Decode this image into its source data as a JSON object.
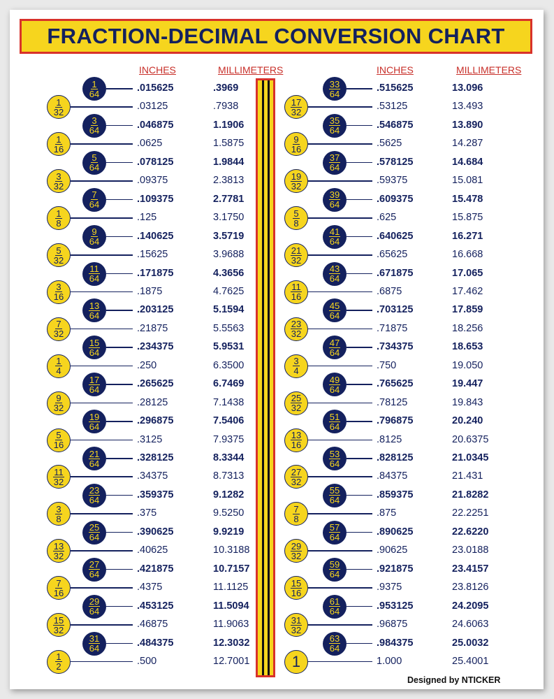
{
  "title": "FRACTION-DECIMAL CONVERSION CHART",
  "columns": {
    "inches": "INCHES",
    "millimeters": "MILLIMETERS"
  },
  "credit": "Designed by NTICKER",
  "colors": {
    "navy": "#14215e",
    "yellow": "#f6d51e",
    "red": "#d8322a"
  },
  "left": [
    {
      "num": "1",
      "den": "64",
      "inch": ".015625",
      "mm": ".3969",
      "bold": true
    },
    {
      "num": "1",
      "den": "32",
      "inch": ".03125",
      "mm": ".7938",
      "bold": false
    },
    {
      "num": "3",
      "den": "64",
      "inch": ".046875",
      "mm": "1.1906",
      "bold": true
    },
    {
      "num": "1",
      "den": "16",
      "inch": ".0625",
      "mm": "1.5875",
      "bold": false
    },
    {
      "num": "5",
      "den": "64",
      "inch": ".078125",
      "mm": "1.9844",
      "bold": true
    },
    {
      "num": "3",
      "den": "32",
      "inch": ".09375",
      "mm": "2.3813",
      "bold": false
    },
    {
      "num": "7",
      "den": "64",
      "inch": ".109375",
      "mm": "2.7781",
      "bold": true
    },
    {
      "num": "1",
      "den": "8",
      "inch": ".125",
      "mm": "3.1750",
      "bold": false
    },
    {
      "num": "9",
      "den": "64",
      "inch": ".140625",
      "mm": "3.5719",
      "bold": true
    },
    {
      "num": "5",
      "den": "32",
      "inch": ".15625",
      "mm": "3.9688",
      "bold": false
    },
    {
      "num": "11",
      "den": "64",
      "inch": ".171875",
      "mm": "4.3656",
      "bold": true
    },
    {
      "num": "3",
      "den": "16",
      "inch": ".1875",
      "mm": "4.7625",
      "bold": false
    },
    {
      "num": "13",
      "den": "64",
      "inch": ".203125",
      "mm": "5.1594",
      "bold": true
    },
    {
      "num": "7",
      "den": "32",
      "inch": ".21875",
      "mm": "5.5563",
      "bold": false
    },
    {
      "num": "15",
      "den": "64",
      "inch": ".234375",
      "mm": "5.9531",
      "bold": true
    },
    {
      "num": "1",
      "den": "4",
      "inch": ".250",
      "mm": "6.3500",
      "bold": false
    },
    {
      "num": "17",
      "den": "64",
      "inch": ".265625",
      "mm": "6.7469",
      "bold": true
    },
    {
      "num": "9",
      "den": "32",
      "inch": ".28125",
      "mm": "7.1438",
      "bold": false
    },
    {
      "num": "19",
      "den": "64",
      "inch": ".296875",
      "mm": "7.5406",
      "bold": true
    },
    {
      "num": "5",
      "den": "16",
      "inch": ".3125",
      "mm": "7.9375",
      "bold": false
    },
    {
      "num": "21",
      "den": "64",
      "inch": ".328125",
      "mm": "8.3344",
      "bold": true
    },
    {
      "num": "11",
      "den": "32",
      "inch": ".34375",
      "mm": "8.7313",
      "bold": false
    },
    {
      "num": "23",
      "den": "64",
      "inch": ".359375",
      "mm": "9.1282",
      "bold": true
    },
    {
      "num": "3",
      "den": "8",
      "inch": ".375",
      "mm": "9.5250",
      "bold": false
    },
    {
      "num": "25",
      "den": "64",
      "inch": ".390625",
      "mm": "9.9219",
      "bold": true
    },
    {
      "num": "13",
      "den": "32",
      "inch": ".40625",
      "mm": "10.3188",
      "bold": false
    },
    {
      "num": "27",
      "den": "64",
      "inch": ".421875",
      "mm": "10.7157",
      "bold": true
    },
    {
      "num": "7",
      "den": "16",
      "inch": ".4375",
      "mm": "11.1125",
      "bold": false
    },
    {
      "num": "29",
      "den": "64",
      "inch": ".453125",
      "mm": "11.5094",
      "bold": true
    },
    {
      "num": "15",
      "den": "32",
      "inch": ".46875",
      "mm": "11.9063",
      "bold": false
    },
    {
      "num": "31",
      "den": "64",
      "inch": ".484375",
      "mm": "12.3032",
      "bold": true
    },
    {
      "num": "1",
      "den": "2",
      "inch": ".500",
      "mm": "12.7001",
      "bold": false
    }
  ],
  "right": [
    {
      "num": "33",
      "den": "64",
      "inch": ".515625",
      "mm": "13.096",
      "bold": true
    },
    {
      "num": "17",
      "den": "32",
      "inch": ".53125",
      "mm": "13.493",
      "bold": false
    },
    {
      "num": "35",
      "den": "64",
      "inch": ".546875",
      "mm": "13.890",
      "bold": true
    },
    {
      "num": "9",
      "den": "16",
      "inch": ".5625",
      "mm": "14.287",
      "bold": false
    },
    {
      "num": "37",
      "den": "64",
      "inch": ".578125",
      "mm": "14.684",
      "bold": true
    },
    {
      "num": "19",
      "den": "32",
      "inch": ".59375",
      "mm": "15.081",
      "bold": false
    },
    {
      "num": "39",
      "den": "64",
      "inch": ".609375",
      "mm": "15.478",
      "bold": true
    },
    {
      "num": "5",
      "den": "8",
      "inch": ".625",
      "mm": "15.875",
      "bold": false
    },
    {
      "num": "41",
      "den": "64",
      "inch": ".640625",
      "mm": "16.271",
      "bold": true
    },
    {
      "num": "21",
      "den": "32",
      "inch": ".65625",
      "mm": "16.668",
      "bold": false
    },
    {
      "num": "43",
      "den": "64",
      "inch": ".671875",
      "mm": "17.065",
      "bold": true
    },
    {
      "num": "11",
      "den": "16",
      "inch": ".6875",
      "mm": "17.462",
      "bold": false
    },
    {
      "num": "45",
      "den": "64",
      "inch": ".703125",
      "mm": "17.859",
      "bold": true
    },
    {
      "num": "23",
      "den": "32",
      "inch": ".71875",
      "mm": "18.256",
      "bold": false
    },
    {
      "num": "47",
      "den": "64",
      "inch": ".734375",
      "mm": "18.653",
      "bold": true
    },
    {
      "num": "3",
      "den": "4",
      "inch": ".750",
      "mm": "19.050",
      "bold": false
    },
    {
      "num": "49",
      "den": "64",
      "inch": ".765625",
      "mm": "19.447",
      "bold": true
    },
    {
      "num": "25",
      "den": "32",
      "inch": ".78125",
      "mm": "19.843",
      "bold": false
    },
    {
      "num": "51",
      "den": "64",
      "inch": ".796875",
      "mm": "20.240",
      "bold": true
    },
    {
      "num": "13",
      "den": "16",
      "inch": ".8125",
      "mm": "20.6375",
      "bold": false
    },
    {
      "num": "53",
      "den": "64",
      "inch": ".828125",
      "mm": "21.0345",
      "bold": true
    },
    {
      "num": "27",
      "den": "32",
      "inch": ".84375",
      "mm": "21.431",
      "bold": false
    },
    {
      "num": "55",
      "den": "64",
      "inch": ".859375",
      "mm": "21.8282",
      "bold": true
    },
    {
      "num": "7",
      "den": "8",
      "inch": ".875",
      "mm": "22.2251",
      "bold": false
    },
    {
      "num": "57",
      "den": "64",
      "inch": ".890625",
      "mm": "22.6220",
      "bold": true
    },
    {
      "num": "29",
      "den": "32",
      "inch": ".90625",
      "mm": "23.0188",
      "bold": false
    },
    {
      "num": "59",
      "den": "64",
      "inch": ".921875",
      "mm": "23.4157",
      "bold": true
    },
    {
      "num": "15",
      "den": "16",
      "inch": ".9375",
      "mm": "23.8126",
      "bold": false
    },
    {
      "num": "61",
      "den": "64",
      "inch": ".953125",
      "mm": "24.2095",
      "bold": true
    },
    {
      "num": "31",
      "den": "32",
      "inch": ".96875",
      "mm": "24.6063",
      "bold": false
    },
    {
      "num": "63",
      "den": "64",
      "inch": ".984375",
      "mm": "25.0032",
      "bold": true
    },
    {
      "num": "1",
      "den": "",
      "inch": "1.000",
      "mm": "25.4001",
      "bold": false
    }
  ]
}
